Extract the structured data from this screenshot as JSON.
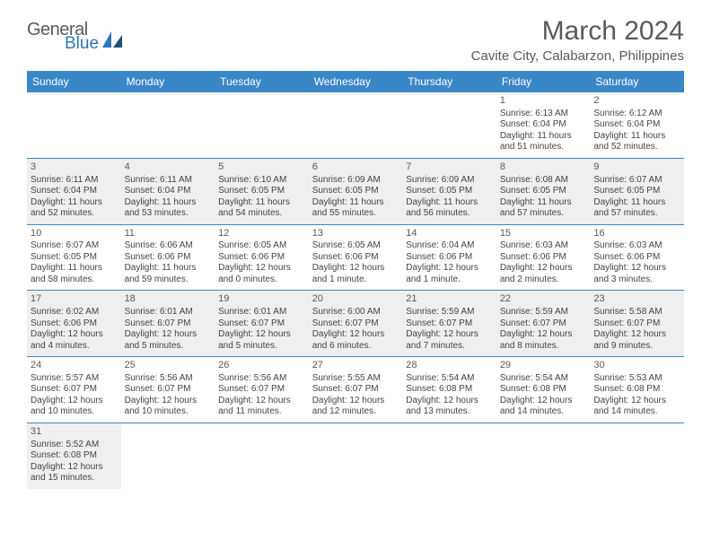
{
  "logo": {
    "general": "General",
    "blue": "Blue"
  },
  "title": "March 2024",
  "location": "Cavite City, Calabarzon, Philippines",
  "daysOfWeek": [
    "Sunday",
    "Monday",
    "Tuesday",
    "Wednesday",
    "Thursday",
    "Friday",
    "Saturday"
  ],
  "colors": {
    "headerBg": "#3a87c8",
    "headerText": "#ffffff",
    "shaded": "#efefef",
    "border": "#3a87c8",
    "textGray": "#5a5a5a",
    "logoBlue": "#2e75b6"
  },
  "weeks": [
    [
      {
        "empty": true
      },
      {
        "empty": true
      },
      {
        "empty": true
      },
      {
        "empty": true
      },
      {
        "empty": true
      },
      {
        "n": "1",
        "sr": "Sunrise: 6:13 AM",
        "ss": "Sunset: 6:04 PM",
        "d1": "Daylight: 11 hours",
        "d2": "and 51 minutes."
      },
      {
        "n": "2",
        "sr": "Sunrise: 6:12 AM",
        "ss": "Sunset: 6:04 PM",
        "d1": "Daylight: 11 hours",
        "d2": "and 52 minutes."
      }
    ],
    [
      {
        "n": "3",
        "sr": "Sunrise: 6:11 AM",
        "ss": "Sunset: 6:04 PM",
        "d1": "Daylight: 11 hours",
        "d2": "and 52 minutes.",
        "s": true
      },
      {
        "n": "4",
        "sr": "Sunrise: 6:11 AM",
        "ss": "Sunset: 6:04 PM",
        "d1": "Daylight: 11 hours",
        "d2": "and 53 minutes.",
        "s": true
      },
      {
        "n": "5",
        "sr": "Sunrise: 6:10 AM",
        "ss": "Sunset: 6:05 PM",
        "d1": "Daylight: 11 hours",
        "d2": "and 54 minutes.",
        "s": true
      },
      {
        "n": "6",
        "sr": "Sunrise: 6:09 AM",
        "ss": "Sunset: 6:05 PM",
        "d1": "Daylight: 11 hours",
        "d2": "and 55 minutes.",
        "s": true
      },
      {
        "n": "7",
        "sr": "Sunrise: 6:09 AM",
        "ss": "Sunset: 6:05 PM",
        "d1": "Daylight: 11 hours",
        "d2": "and 56 minutes.",
        "s": true
      },
      {
        "n": "8",
        "sr": "Sunrise: 6:08 AM",
        "ss": "Sunset: 6:05 PM",
        "d1": "Daylight: 11 hours",
        "d2": "and 57 minutes.",
        "s": true
      },
      {
        "n": "9",
        "sr": "Sunrise: 6:07 AM",
        "ss": "Sunset: 6:05 PM",
        "d1": "Daylight: 11 hours",
        "d2": "and 57 minutes.",
        "s": true
      }
    ],
    [
      {
        "n": "10",
        "sr": "Sunrise: 6:07 AM",
        "ss": "Sunset: 6:05 PM",
        "d1": "Daylight: 11 hours",
        "d2": "and 58 minutes."
      },
      {
        "n": "11",
        "sr": "Sunrise: 6:06 AM",
        "ss": "Sunset: 6:06 PM",
        "d1": "Daylight: 11 hours",
        "d2": "and 59 minutes."
      },
      {
        "n": "12",
        "sr": "Sunrise: 6:05 AM",
        "ss": "Sunset: 6:06 PM",
        "d1": "Daylight: 12 hours",
        "d2": "and 0 minutes."
      },
      {
        "n": "13",
        "sr": "Sunrise: 6:05 AM",
        "ss": "Sunset: 6:06 PM",
        "d1": "Daylight: 12 hours",
        "d2": "and 1 minute."
      },
      {
        "n": "14",
        "sr": "Sunrise: 6:04 AM",
        "ss": "Sunset: 6:06 PM",
        "d1": "Daylight: 12 hours",
        "d2": "and 1 minute."
      },
      {
        "n": "15",
        "sr": "Sunrise: 6:03 AM",
        "ss": "Sunset: 6:06 PM",
        "d1": "Daylight: 12 hours",
        "d2": "and 2 minutes."
      },
      {
        "n": "16",
        "sr": "Sunrise: 6:03 AM",
        "ss": "Sunset: 6:06 PM",
        "d1": "Daylight: 12 hours",
        "d2": "and 3 minutes."
      }
    ],
    [
      {
        "n": "17",
        "sr": "Sunrise: 6:02 AM",
        "ss": "Sunset: 6:06 PM",
        "d1": "Daylight: 12 hours",
        "d2": "and 4 minutes.",
        "s": true
      },
      {
        "n": "18",
        "sr": "Sunrise: 6:01 AM",
        "ss": "Sunset: 6:07 PM",
        "d1": "Daylight: 12 hours",
        "d2": "and 5 minutes.",
        "s": true
      },
      {
        "n": "19",
        "sr": "Sunrise: 6:01 AM",
        "ss": "Sunset: 6:07 PM",
        "d1": "Daylight: 12 hours",
        "d2": "and 5 minutes.",
        "s": true
      },
      {
        "n": "20",
        "sr": "Sunrise: 6:00 AM",
        "ss": "Sunset: 6:07 PM",
        "d1": "Daylight: 12 hours",
        "d2": "and 6 minutes.",
        "s": true
      },
      {
        "n": "21",
        "sr": "Sunrise: 5:59 AM",
        "ss": "Sunset: 6:07 PM",
        "d1": "Daylight: 12 hours",
        "d2": "and 7 minutes.",
        "s": true
      },
      {
        "n": "22",
        "sr": "Sunrise: 5:59 AM",
        "ss": "Sunset: 6:07 PM",
        "d1": "Daylight: 12 hours",
        "d2": "and 8 minutes.",
        "s": true
      },
      {
        "n": "23",
        "sr": "Sunrise: 5:58 AM",
        "ss": "Sunset: 6:07 PM",
        "d1": "Daylight: 12 hours",
        "d2": "and 9 minutes.",
        "s": true
      }
    ],
    [
      {
        "n": "24",
        "sr": "Sunrise: 5:57 AM",
        "ss": "Sunset: 6:07 PM",
        "d1": "Daylight: 12 hours",
        "d2": "and 10 minutes."
      },
      {
        "n": "25",
        "sr": "Sunrise: 5:56 AM",
        "ss": "Sunset: 6:07 PM",
        "d1": "Daylight: 12 hours",
        "d2": "and 10 minutes."
      },
      {
        "n": "26",
        "sr": "Sunrise: 5:56 AM",
        "ss": "Sunset: 6:07 PM",
        "d1": "Daylight: 12 hours",
        "d2": "and 11 minutes."
      },
      {
        "n": "27",
        "sr": "Sunrise: 5:55 AM",
        "ss": "Sunset: 6:07 PM",
        "d1": "Daylight: 12 hours",
        "d2": "and 12 minutes."
      },
      {
        "n": "28",
        "sr": "Sunrise: 5:54 AM",
        "ss": "Sunset: 6:08 PM",
        "d1": "Daylight: 12 hours",
        "d2": "and 13 minutes."
      },
      {
        "n": "29",
        "sr": "Sunrise: 5:54 AM",
        "ss": "Sunset: 6:08 PM",
        "d1": "Daylight: 12 hours",
        "d2": "and 14 minutes."
      },
      {
        "n": "30",
        "sr": "Sunrise: 5:53 AM",
        "ss": "Sunset: 6:08 PM",
        "d1": "Daylight: 12 hours",
        "d2": "and 14 minutes."
      }
    ],
    [
      {
        "n": "31",
        "sr": "Sunrise: 5:52 AM",
        "ss": "Sunset: 6:08 PM",
        "d1": "Daylight: 12 hours",
        "d2": "and 15 minutes.",
        "s": true
      },
      {
        "empty": true
      },
      {
        "empty": true
      },
      {
        "empty": true
      },
      {
        "empty": true
      },
      {
        "empty": true
      },
      {
        "empty": true
      }
    ]
  ]
}
